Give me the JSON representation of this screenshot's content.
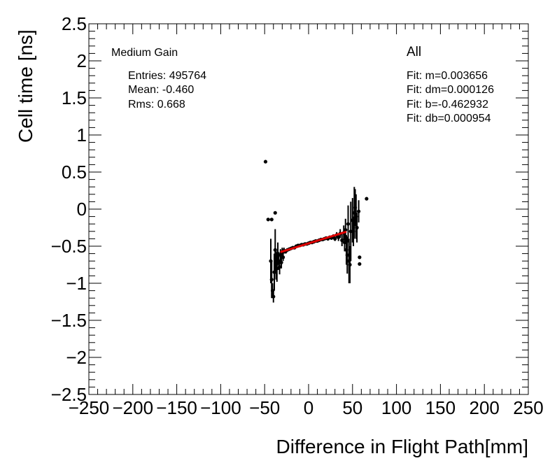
{
  "chart_data": {
    "type": "scatter",
    "xlabel": "Difference in Flight Path[mm]",
    "ylabel": "Cell time [ns]",
    "xlim": [
      -250,
      250
    ],
    "ylim": [
      -2.5,
      2.5
    ],
    "x_ticks": [
      "−250",
      "−200",
      "−150",
      "−100",
      "−50",
      "0",
      "50",
      "100",
      "150",
      "200",
      "250"
    ],
    "y_ticks": [
      "−2.5",
      "−2",
      "−1.5",
      "−1",
      "−0.5",
      "0",
      "0.5",
      "1",
      "1.5",
      "2",
      "2.5"
    ],
    "stats_title": "Medium Gain",
    "stats": [
      "Entries: 495764",
      "Mean: -0.460",
      "Rms: 0.668"
    ],
    "fit_title": "All",
    "fit": [
      "Fit: m=0.003656",
      "Fit: dm=0.000126",
      "Fit: b=-0.462932",
      "Fit: db=0.000954"
    ],
    "fit_line": {
      "x": [
        -32,
        43
      ],
      "y": [
        -0.58,
        -0.305
      ],
      "color": "#e00000"
    },
    "points": [
      {
        "x": -49,
        "y": 0.64,
        "err": 0
      },
      {
        "x": -46,
        "y": -0.14,
        "err": 0
      },
      {
        "x": -42,
        "y": -0.14,
        "err": 0
      },
      {
        "x": -38,
        "y": -0.05,
        "err": 0
      },
      {
        "x": -43,
        "y": -0.7,
        "err": 0.3
      },
      {
        "x": -42,
        "y": -0.95,
        "err": 0.25
      },
      {
        "x": -41,
        "y": -1.1,
        "err": 0.1
      },
      {
        "x": -40,
        "y": -1.18,
        "err": 0.08
      },
      {
        "x": -39,
        "y": -0.85,
        "err": 0.25
      },
      {
        "x": -38,
        "y": -0.55,
        "err": 0.28
      },
      {
        "x": -37,
        "y": -0.75,
        "err": 0.2
      },
      {
        "x": -36,
        "y": -0.8,
        "err": 0.18
      },
      {
        "x": -35,
        "y": -0.6,
        "err": 0.15
      },
      {
        "x": -34,
        "y": -0.7,
        "err": 0.12
      },
      {
        "x": -33,
        "y": -0.78,
        "err": 0.1
      },
      {
        "x": -32,
        "y": -0.62,
        "err": 0.08
      },
      {
        "x": -31,
        "y": -0.72,
        "err": 0.08
      },
      {
        "x": -30,
        "y": -0.58,
        "err": 0.06
      },
      {
        "x": -29,
        "y": -0.65,
        "err": 0.05
      },
      {
        "x": -28,
        "y": -0.56,
        "err": 0.04
      },
      {
        "x": -26,
        "y": -0.57,
        "err": 0.03
      },
      {
        "x": -24,
        "y": -0.55,
        "err": 0.02
      },
      {
        "x": -22,
        "y": -0.54,
        "err": 0.02
      },
      {
        "x": -20,
        "y": -0.53,
        "err": 0.02
      },
      {
        "x": -18,
        "y": -0.52,
        "err": 0.01
      },
      {
        "x": -16,
        "y": -0.52,
        "err": 0.01
      },
      {
        "x": -14,
        "y": -0.5,
        "err": 0.01
      },
      {
        "x": -12,
        "y": -0.49,
        "err": 0.01
      },
      {
        "x": -10,
        "y": -0.49,
        "err": 0.01
      },
      {
        "x": -8,
        "y": -0.48,
        "err": 0.01
      },
      {
        "x": -6,
        "y": -0.48,
        "err": 0.01
      },
      {
        "x": -4,
        "y": -0.47,
        "err": 0.01
      },
      {
        "x": -2,
        "y": -0.47,
        "err": 0.01
      },
      {
        "x": 0,
        "y": -0.46,
        "err": 0.01
      },
      {
        "x": 2,
        "y": -0.45,
        "err": 0.01
      },
      {
        "x": 4,
        "y": -0.45,
        "err": 0.01
      },
      {
        "x": 6,
        "y": -0.44,
        "err": 0.01
      },
      {
        "x": 8,
        "y": -0.43,
        "err": 0.01
      },
      {
        "x": 10,
        "y": -0.43,
        "err": 0.01
      },
      {
        "x": 12,
        "y": -0.42,
        "err": 0.01
      },
      {
        "x": 14,
        "y": -0.41,
        "err": 0.01
      },
      {
        "x": 16,
        "y": -0.41,
        "err": 0.01
      },
      {
        "x": 18,
        "y": -0.4,
        "err": 0.01
      },
      {
        "x": 20,
        "y": -0.39,
        "err": 0.01
      },
      {
        "x": 22,
        "y": -0.4,
        "err": 0.02
      },
      {
        "x": 24,
        "y": -0.38,
        "err": 0.02
      },
      {
        "x": 26,
        "y": -0.39,
        "err": 0.02
      },
      {
        "x": 28,
        "y": -0.37,
        "err": 0.03
      },
      {
        "x": 30,
        "y": -0.4,
        "err": 0.03
      },
      {
        "x": 32,
        "y": -0.35,
        "err": 0.04
      },
      {
        "x": 34,
        "y": -0.38,
        "err": 0.05
      },
      {
        "x": 36,
        "y": -0.33,
        "err": 0.06
      },
      {
        "x": 38,
        "y": -0.42,
        "err": 0.08
      },
      {
        "x": 40,
        "y": -0.32,
        "err": 0.1
      },
      {
        "x": 41,
        "y": -0.45,
        "err": 0.12
      },
      {
        "x": 42,
        "y": -0.28,
        "err": 0.15
      },
      {
        "x": 43,
        "y": -0.55,
        "err": 0.2
      },
      {
        "x": 44,
        "y": -0.62,
        "err": 0.25
      },
      {
        "x": 45,
        "y": -0.2,
        "err": 0.25
      },
      {
        "x": 46,
        "y": -0.7,
        "err": 0.3
      },
      {
        "x": 47,
        "y": -0.75,
        "err": 0.25
      },
      {
        "x": 48,
        "y": -0.3,
        "err": 0.4
      },
      {
        "x": 50,
        "y": -0.15,
        "err": 0.3
      },
      {
        "x": 51,
        "y": -0.3,
        "err": 0.2
      },
      {
        "x": 52,
        "y": -0.05,
        "err": 0.35
      },
      {
        "x": 53,
        "y": 0.02,
        "err": 0.25
      },
      {
        "x": 54,
        "y": -0.1,
        "err": 0.3
      },
      {
        "x": 55,
        "y": -0.25,
        "err": 0.2
      },
      {
        "x": 57,
        "y": -0.03,
        "err": 0.15
      },
      {
        "x": 58,
        "y": -0.65,
        "err": 0
      },
      {
        "x": 58,
        "y": -0.74,
        "err": 0
      },
      {
        "x": 66,
        "y": 0.14,
        "err": 0
      }
    ]
  }
}
